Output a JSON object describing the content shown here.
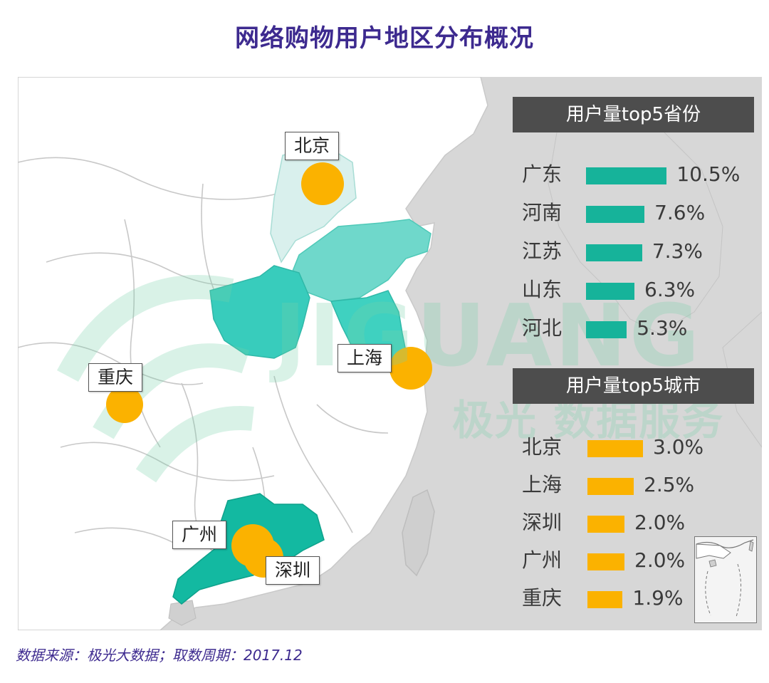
{
  "title": "网络购物用户地区分布概况",
  "colors": {
    "title": "#3d2a8f",
    "province_bar": "#16b39a",
    "city_bar": "#fbb200",
    "panel_header_bg": "#4d4d4d",
    "sea": "#d7d7d7",
    "land": "#ffffff",
    "highlight_dark": "#13b9a1",
    "highlight_mid": "#3fd1c0",
    "highlight_light": "#d9f0ed",
    "city_marker": "#fbb200"
  },
  "map": {
    "map_labels": [
      {
        "id": "beijing",
        "text": "北京"
      },
      {
        "id": "shanghai",
        "text": "上海"
      },
      {
        "id": "chongqing",
        "text": "重庆"
      },
      {
        "id": "guangzhou",
        "text": "广州"
      },
      {
        "id": "shenzhen",
        "text": "深圳"
      }
    ],
    "watermark": {
      "latin": "JIGUANG",
      "cn": "极光 数据服务"
    }
  },
  "provinces_panel": {
    "header": "用户量top5省份",
    "items": [
      {
        "name": "广东",
        "value": 10.5,
        "label": "10.5%"
      },
      {
        "name": "河南",
        "value": 7.6,
        "label": "7.6%"
      },
      {
        "name": "江苏",
        "value": 7.3,
        "label": "7.3%"
      },
      {
        "name": "山东",
        "value": 6.3,
        "label": "6.3%"
      },
      {
        "name": "河北",
        "value": 5.3,
        "label": "5.3%"
      }
    ]
  },
  "cities_panel": {
    "header": "用户量top5城市",
    "items": [
      {
        "name": "北京",
        "value": 3.0,
        "label": "3.0%"
      },
      {
        "name": "上海",
        "value": 2.5,
        "label": "2.5%"
      },
      {
        "name": "深圳",
        "value": 2.0,
        "label": "2.0%"
      },
      {
        "name": "广州",
        "value": 2.0,
        "label": "2.0%"
      },
      {
        "name": "重庆",
        "value": 1.9,
        "label": "1.9%"
      }
    ]
  },
  "footer": "数据来源：极光大数据；取数周期：2017.12"
}
